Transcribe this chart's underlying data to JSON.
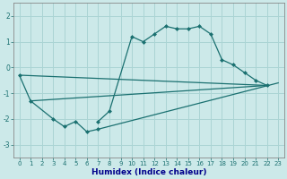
{
  "title": "",
  "xlabel": "Humidex (Indice chaleur)",
  "ylabel": "",
  "background_color": "#cce9e9",
  "grid_color": "#aad4d4",
  "line_color": "#1a7070",
  "x_data": [
    0,
    1,
    2,
    3,
    4,
    5,
    6,
    7,
    8,
    9,
    10,
    11,
    12,
    13,
    14,
    15,
    16,
    17,
    18,
    19,
    20,
    21,
    22,
    23
  ],
  "series1_x": [
    0,
    1,
    3,
    4,
    5,
    6,
    7
  ],
  "series1_y": [
    -0.3,
    -1.3,
    -2.0,
    -2.3,
    -2.1,
    -2.5,
    -2.4
  ],
  "series2_x": [
    7,
    8,
    10,
    11,
    12,
    13,
    14,
    15,
    16,
    17,
    18,
    19,
    20,
    21,
    22
  ],
  "series2_y": [
    -2.1,
    -1.7,
    1.2,
    1.0,
    1.3,
    1.6,
    1.5,
    1.5,
    1.6,
    1.3,
    0.3,
    0.1,
    -0.2,
    -0.5,
    -0.7
  ],
  "line1_x": [
    0,
    22
  ],
  "line1_y": [
    -0.3,
    -0.7
  ],
  "line2_x": [
    1,
    22
  ],
  "line2_y": [
    -1.3,
    -0.7
  ],
  "line3_x": [
    7,
    23
  ],
  "line3_y": [
    -2.4,
    -0.6
  ],
  "ylim": [
    -3.5,
    2.5
  ],
  "xlim": [
    -0.5,
    23.5
  ],
  "yticks": [
    -3,
    -2,
    -1,
    0,
    1,
    2
  ],
  "xticks": [
    0,
    1,
    2,
    3,
    4,
    5,
    6,
    7,
    8,
    9,
    10,
    11,
    12,
    13,
    14,
    15,
    16,
    17,
    18,
    19,
    20,
    21,
    22,
    23
  ],
  "xlabel_color": "#00008b",
  "tick_color": "#1a7070",
  "spine_color": "#888888"
}
